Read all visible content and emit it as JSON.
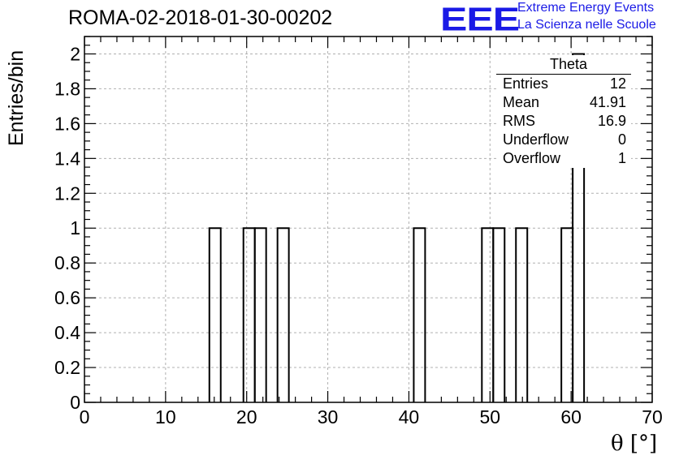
{
  "header": {
    "run_title": "ROMA-02-2018-01-30-00202",
    "logo_text": "EEE",
    "logo_line1": "Extreme Energy Events",
    "logo_line2": "La Scienza nelle Scuole",
    "logo_color": "#1a1ae6"
  },
  "stats_box": {
    "title": "Theta",
    "rows": [
      {
        "label": "Entries",
        "value": "12"
      },
      {
        "label": "Mean",
        "value": "41.91"
      },
      {
        "label": "RMS",
        "value": "16.9"
      },
      {
        "label": "Underflow",
        "value": "0"
      },
      {
        "label": "Overflow",
        "value": "1"
      }
    ]
  },
  "chart_data": {
    "type": "bar",
    "style": "step-histogram",
    "xlabel": "θ [°]",
    "ylabel": "Entries/bin",
    "xlim": [
      0,
      70
    ],
    "ylim": [
      0,
      2.1
    ],
    "x_ticks": [
      "0",
      "10",
      "20",
      "30",
      "40",
      "50",
      "60",
      "70"
    ],
    "y_ticks": [
      "0",
      "0.2",
      "0.4",
      "0.6",
      "0.8",
      "1",
      "1.2",
      "1.4",
      "1.6",
      "1.8",
      "2"
    ],
    "grid": true,
    "bin_width": 1.4,
    "bins": [
      {
        "x_low": 15.4,
        "x_high": 16.8,
        "value": 1
      },
      {
        "x_low": 19.6,
        "x_high": 21.0,
        "value": 1
      },
      {
        "x_low": 21.0,
        "x_high": 22.4,
        "value": 1
      },
      {
        "x_low": 23.8,
        "x_high": 25.2,
        "value": 1
      },
      {
        "x_low": 40.6,
        "x_high": 42.0,
        "value": 1
      },
      {
        "x_low": 49.0,
        "x_high": 50.4,
        "value": 1
      },
      {
        "x_low": 50.4,
        "x_high": 51.8,
        "value": 1
      },
      {
        "x_low": 53.2,
        "x_high": 54.6,
        "value": 1
      },
      {
        "x_low": 58.8,
        "x_high": 60.2,
        "value": 1
      },
      {
        "x_low": 60.2,
        "x_high": 61.6,
        "value": 2
      }
    ],
    "line_color": "#000000",
    "grid_color": "#b0b0b0"
  }
}
